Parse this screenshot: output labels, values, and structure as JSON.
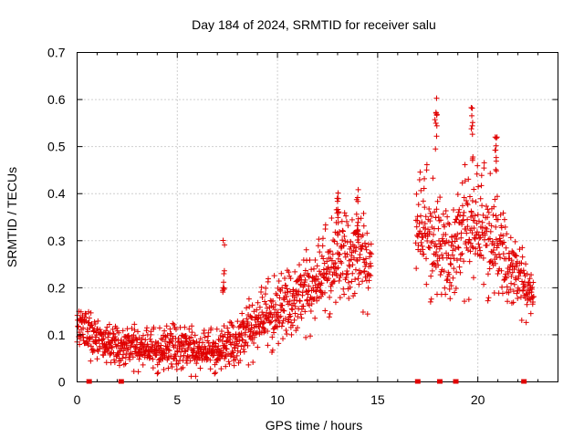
{
  "chart_data": {
    "type": "scatter",
    "title": "Day 184 of 2024, SRMTID for receiver salu",
    "xlabel": "GPS time / hours",
    "ylabel": "SRMTID / TECUs",
    "xlim": [
      0,
      24
    ],
    "ylim": [
      0,
      0.7
    ],
    "xticks": [
      0,
      5,
      10,
      15,
      20
    ],
    "yticks": [
      0,
      0.1,
      0.2,
      0.3,
      0.4,
      0.5,
      0.6,
      0.7
    ],
    "grid": true,
    "marker": "+",
    "color": "#e00000",
    "data_gap_markers_hours": [
      0.6,
      2.2,
      17.0,
      18.1,
      18.9,
      22.3
    ],
    "series_profile": [
      {
        "x": 0.0,
        "median": 0.1,
        "spread": 0.04
      },
      {
        "x": 0.5,
        "median": 0.12,
        "spread": 0.05
      },
      {
        "x": 1.0,
        "median": 0.08,
        "spread": 0.04
      },
      {
        "x": 2.0,
        "median": 0.07,
        "spread": 0.04
      },
      {
        "x": 3.0,
        "median": 0.07,
        "spread": 0.04
      },
      {
        "x": 4.0,
        "median": 0.06,
        "spread": 0.04
      },
      {
        "x": 5.0,
        "median": 0.07,
        "spread": 0.05
      },
      {
        "x": 6.0,
        "median": 0.06,
        "spread": 0.04
      },
      {
        "x": 7.0,
        "median": 0.06,
        "spread": 0.04
      },
      {
        "x": 8.0,
        "median": 0.08,
        "spread": 0.05
      },
      {
        "x": 9.0,
        "median": 0.12,
        "spread": 0.06
      },
      {
        "x": 10.0,
        "median": 0.14,
        "spread": 0.07
      },
      {
        "x": 11.0,
        "median": 0.17,
        "spread": 0.07
      },
      {
        "x": 12.0,
        "median": 0.2,
        "spread": 0.08
      },
      {
        "x": 13.0,
        "median": 0.25,
        "spread": 0.09
      },
      {
        "x": 14.0,
        "median": 0.26,
        "spread": 0.09
      },
      {
        "x": 14.5,
        "median": 0.24,
        "spread": 0.08
      },
      {
        "x": 16.9,
        "median": 0.32,
        "spread": 0.1
      },
      {
        "x": 17.5,
        "median": 0.3,
        "spread": 0.12
      },
      {
        "x": 18.5,
        "median": 0.25,
        "spread": 0.09
      },
      {
        "x": 19.5,
        "median": 0.32,
        "spread": 0.12
      },
      {
        "x": 20.5,
        "median": 0.3,
        "spread": 0.12
      },
      {
        "x": 21.5,
        "median": 0.24,
        "spread": 0.08
      },
      {
        "x": 22.3,
        "median": 0.2,
        "spread": 0.06
      },
      {
        "x": 22.8,
        "median": 0.18,
        "spread": 0.05
      }
    ],
    "peaks": [
      {
        "x": 7.3,
        "y": 0.31
      },
      {
        "x": 13.0,
        "y": 0.42
      },
      {
        "x": 14.0,
        "y": 0.43
      },
      {
        "x": 17.9,
        "y": 0.61
      },
      {
        "x": 19.7,
        "y": 0.59
      },
      {
        "x": 20.9,
        "y": 0.56
      }
    ]
  }
}
